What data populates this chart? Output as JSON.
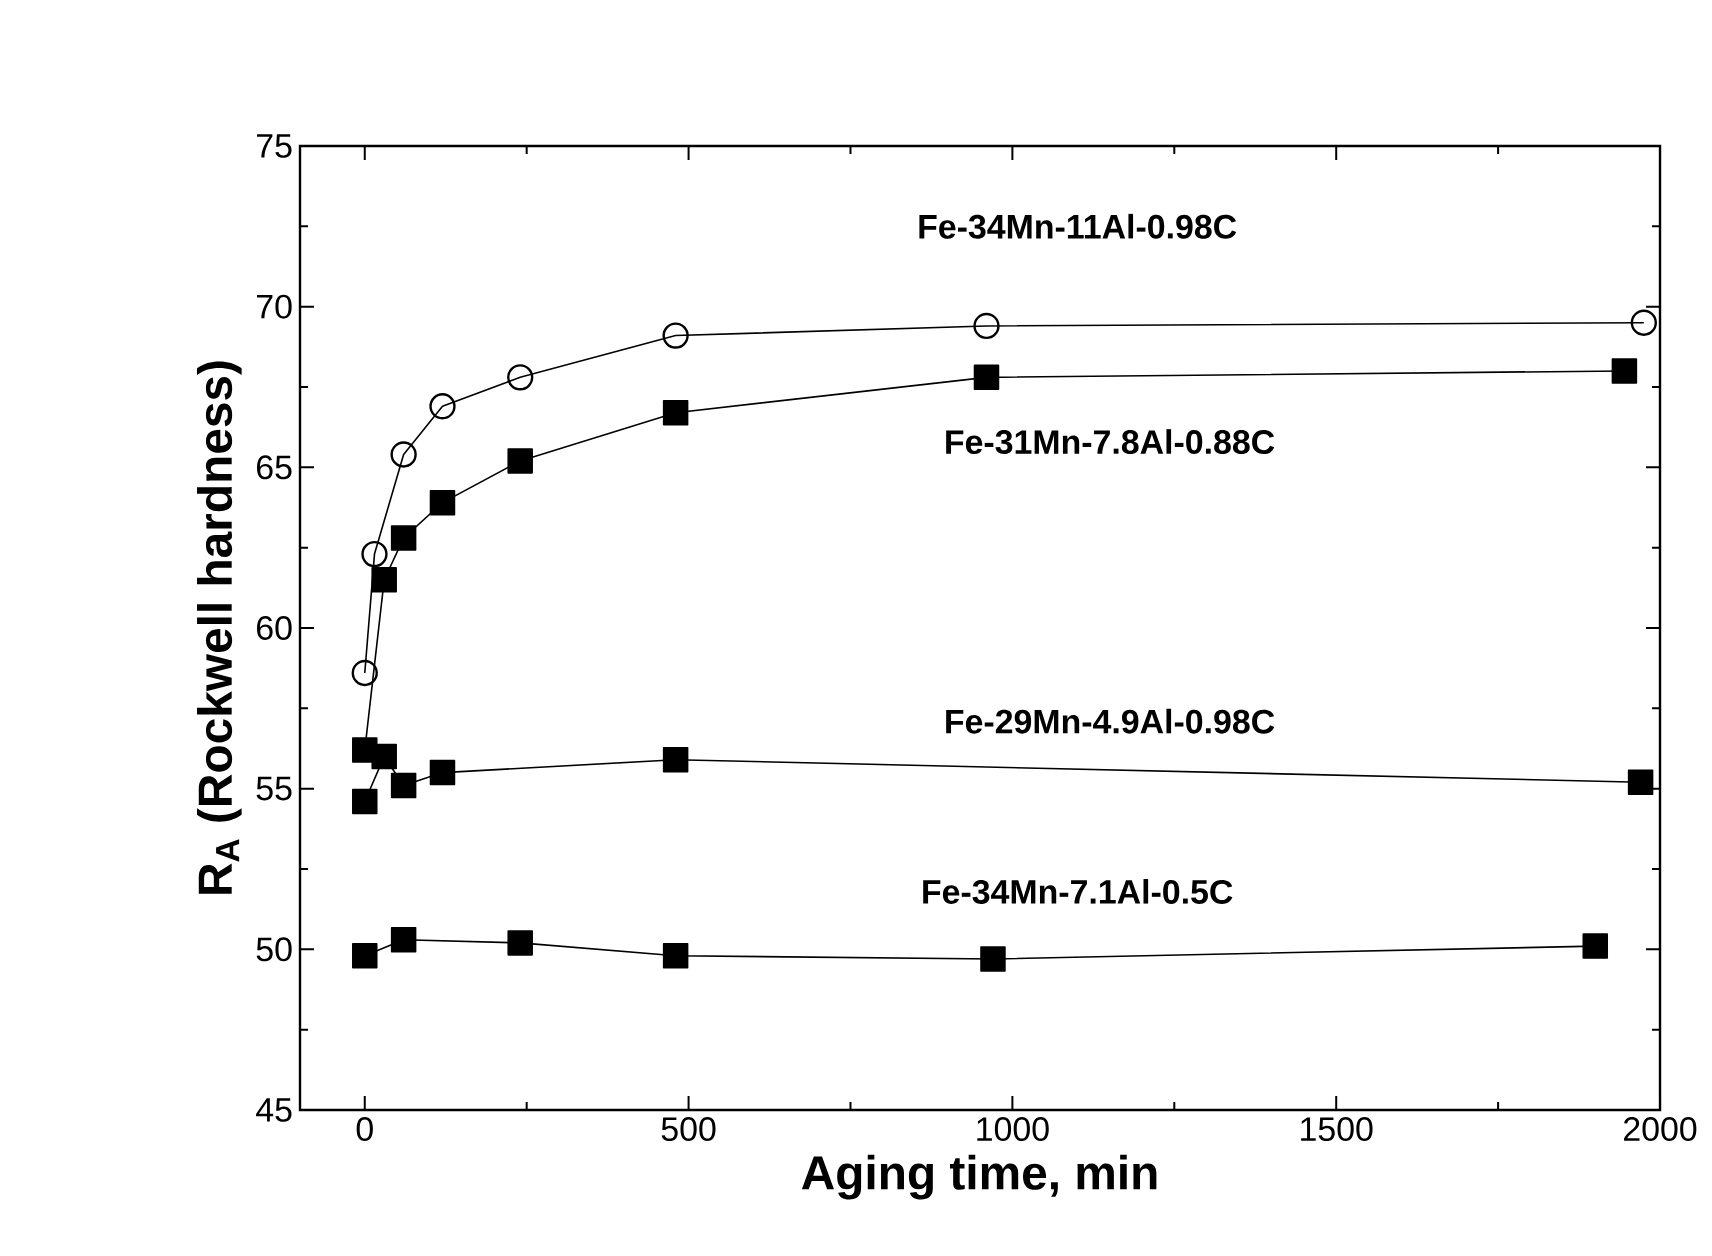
{
  "chart_data": {
    "type": "line",
    "xlabel": "Aging time, min",
    "ylabel": "R$_{A}$ (Rockwell hardness)",
    "xlim": [
      -100,
      2000
    ],
    "ylim": [
      45,
      75
    ],
    "xticks": [
      0,
      500,
      1000,
      1500,
      2000
    ],
    "yticks": [
      45,
      50,
      55,
      60,
      65,
      70,
      75
    ],
    "grid": false,
    "legend": false,
    "line_style": "solid",
    "series": [
      {
        "name": "Fe-34Mn-11Al-0.98C",
        "color": "#000000",
        "marker": "circle",
        "x": [
          0,
          15,
          60,
          120,
          240,
          480,
          960,
          1975
        ],
        "values": [
          58.6,
          62.3,
          65.4,
          66.9,
          67.8,
          69.1,
          69.4,
          69.5
        ]
      },
      {
        "name": "Fe-31Mn-7.8Al-0.88C",
        "color": "#000000",
        "marker": "square",
        "x": [
          0,
          30,
          60,
          120,
          240,
          480,
          960,
          1945
        ],
        "values": [
          56.2,
          61.5,
          62.8,
          63.9,
          65.2,
          66.7,
          67.8,
          68.0
        ]
      },
      {
        "name": "Fe-29Mn-4.9Al-0.98C",
        "color": "#000000",
        "marker": "square",
        "x": [
          0,
          30,
          60,
          120,
          480,
          1970
        ],
        "values": [
          54.6,
          56.0,
          55.1,
          55.5,
          55.9,
          55.2
        ]
      },
      {
        "name": "Fe-34Mn-7.1Al-0.5C",
        "color": "#000000",
        "marker": "square",
        "x": [
          0,
          60,
          240,
          480,
          970,
          1900
        ],
        "values": [
          49.8,
          50.3,
          50.2,
          49.8,
          49.7,
          50.1
        ]
      }
    ]
  }
}
